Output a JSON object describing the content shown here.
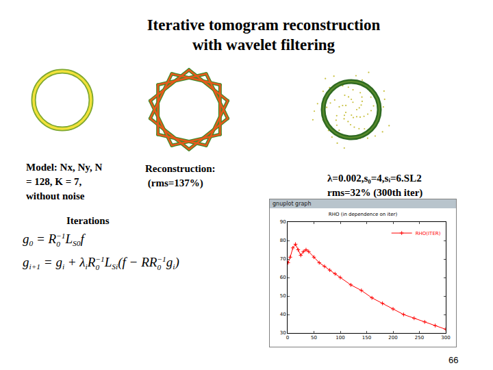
{
  "title": [
    "Iterative tomogram reconstruction",
    "with wavelet filtering"
  ],
  "panels": [
    {
      "caption": [
        "Model: Nx, Ny, N",
        "= 128, K = 7,",
        "without noise"
      ]
    },
    {
      "caption": [
        "Reconstruction:",
        " (rms=137%)"
      ]
    },
    {
      "caption": [
        "λ=0.002,s₀=4,sᵢ=6.SL2",
        "rms=32% (300th iter)"
      ]
    }
  ],
  "iterations_label": "Iterations",
  "formulas": [
    [
      {
        "t": "g",
        "sub": "0"
      },
      {
        "t": " = "
      },
      {
        "t": "R",
        "sub": "0",
        "sup": "−1"
      },
      {
        "t": "L",
        "sub": "S0"
      },
      {
        "t": "f"
      }
    ],
    [
      {
        "t": "g",
        "sub": "i+1"
      },
      {
        "t": " = "
      },
      {
        "t": "g",
        "sub": "i"
      },
      {
        "t": " + λ",
        "sub": "i"
      },
      {
        "t": "R",
        "sub": "0",
        "sup": "−1"
      },
      {
        "t": "L",
        "sub": "Si"
      },
      {
        "t": "(f − RR",
        "sub": "0",
        "sup": "−1"
      },
      {
        "t": "g",
        "sub": "i"
      },
      {
        "t": ")"
      }
    ]
  ],
  "window": {
    "title": "gnuplot graph"
  },
  "page_number": "66",
  "chart_data": {
    "type": "line",
    "title": "RHO (in dependence on iter)",
    "x": [
      1,
      5,
      10,
      15,
      20,
      25,
      30,
      35,
      40,
      50,
      60,
      70,
      80,
      90,
      100,
      120,
      140,
      160,
      180,
      200,
      220,
      240,
      260,
      280,
      300
    ],
    "series": [
      {
        "name": "RHO(ITER)",
        "color": "#ff0000",
        "marker": "cross",
        "values": [
          68,
          71,
          76,
          78,
          75,
          72,
          74,
          75,
          74,
          71,
          68,
          66,
          64,
          62,
          60,
          56,
          53,
          49,
          46,
          43,
          40,
          38,
          36,
          34,
          32
        ]
      }
    ],
    "xlim": [
      0,
      300
    ],
    "xticks": [
      0,
      50,
      100,
      150,
      200,
      250,
      300
    ],
    "ylim": [
      30,
      90
    ],
    "yticks": [
      30,
      40,
      50,
      60,
      70,
      80,
      90
    ],
    "grid": false,
    "legend": "top-right"
  }
}
